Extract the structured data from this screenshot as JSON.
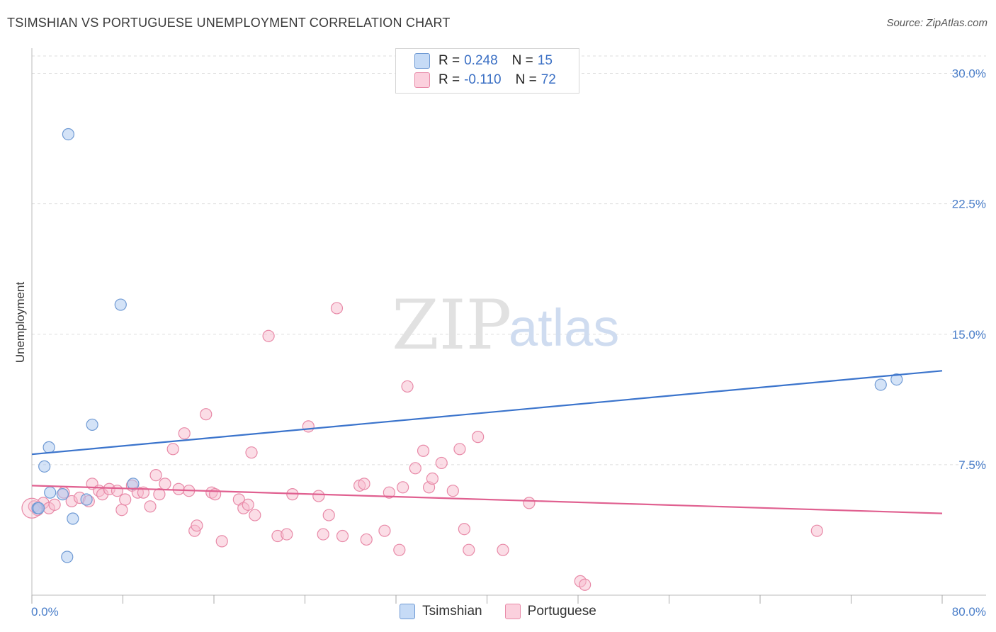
{
  "title": "TSIMSHIAN VS PORTUGUESE UNEMPLOYMENT CORRELATION CHART",
  "source": "Source: ZipAtlas.com",
  "watermark": {
    "zip": "ZIP",
    "atlas": "atlas"
  },
  "legend": {
    "rows": [
      {
        "r_label": "R =",
        "r_value": "0.248",
        "n_label": "N =",
        "n_value": "15"
      },
      {
        "r_label": "R =",
        "r_value": "-0.110",
        "n_label": "N =",
        "n_value": "72"
      }
    ]
  },
  "bottom_legend": [
    "Tsimshian",
    "Portuguese"
  ],
  "colors": {
    "tsimshian_fill": "#aac8f0",
    "tsimshian_stroke": "#6f9ad4",
    "tsimshian_line": "#3b74cc",
    "portuguese_fill": "#f7bccd",
    "portuguese_stroke": "#e88aa8",
    "portuguese_line": "#e06090",
    "grid": "#dddddd",
    "tick_text": "#4a7ec9"
  },
  "chart_data": {
    "type": "scatter",
    "title": "TSIMSHIAN VS PORTUGUESE UNEMPLOYMENT CORRELATION CHART",
    "xlabel": "",
    "ylabel": "Unemployment",
    "xlim": [
      0,
      80
    ],
    "ylim": [
      0,
      31
    ],
    "x_tick_labels": [
      "0.0%",
      "80.0%"
    ],
    "y_ticks": [
      7.5,
      15.0,
      22.5,
      30.0
    ],
    "y_tick_labels": [
      "7.5%",
      "15.0%",
      "22.5%",
      "30.0%"
    ],
    "grid": true,
    "series": [
      {
        "name": "Tsimshian",
        "r": 0.248,
        "n": 15,
        "trend": {
          "x": [
            0,
            80
          ],
          "y": [
            8.1,
            12.9
          ]
        },
        "points": [
          [
            0.5,
            5.0
          ],
          [
            0.6,
            5.0
          ],
          [
            1.5,
            8.5
          ],
          [
            1.6,
            5.9
          ],
          [
            1.1,
            7.4
          ],
          [
            2.7,
            5.8
          ],
          [
            3.2,
            26.5
          ],
          [
            3.1,
            2.2
          ],
          [
            3.6,
            4.4
          ],
          [
            4.8,
            5.5
          ],
          [
            5.3,
            9.8
          ],
          [
            7.8,
            16.7
          ],
          [
            8.9,
            6.4
          ],
          [
            74.6,
            12.1
          ],
          [
            76.0,
            12.4
          ]
        ]
      },
      {
        "name": "Portuguese",
        "r": -0.11,
        "n": 72,
        "trend": {
          "x": [
            0,
            80
          ],
          "y": [
            6.3,
            4.7
          ]
        },
        "points": [
          [
            0.2,
            5.1
          ],
          [
            0.5,
            4.9
          ],
          [
            1.0,
            5.3
          ],
          [
            1.5,
            5.0
          ],
          [
            2.0,
            5.2
          ],
          [
            2.8,
            5.9
          ],
          [
            3.5,
            5.4
          ],
          [
            4.2,
            5.6
          ],
          [
            5.0,
            5.4
          ],
          [
            5.3,
            6.4
          ],
          [
            5.9,
            6.0
          ],
          [
            6.2,
            5.8
          ],
          [
            6.8,
            6.1
          ],
          [
            7.5,
            6.0
          ],
          [
            7.9,
            4.9
          ],
          [
            8.2,
            5.5
          ],
          [
            8.8,
            6.3
          ],
          [
            9.3,
            5.9
          ],
          [
            9.8,
            5.9
          ],
          [
            10.4,
            5.1
          ],
          [
            10.9,
            6.9
          ],
          [
            11.2,
            5.8
          ],
          [
            11.7,
            6.4
          ],
          [
            12.4,
            8.4
          ],
          [
            12.9,
            6.1
          ],
          [
            13.4,
            9.3
          ],
          [
            13.8,
            6.0
          ],
          [
            14.3,
            3.7
          ],
          [
            14.5,
            4.0
          ],
          [
            15.3,
            10.4
          ],
          [
            15.8,
            5.9
          ],
          [
            16.1,
            5.8
          ],
          [
            16.7,
            3.1
          ],
          [
            18.2,
            5.5
          ],
          [
            18.6,
            5.0
          ],
          [
            19.0,
            5.2
          ],
          [
            19.3,
            8.2
          ],
          [
            19.6,
            4.6
          ],
          [
            20.8,
            14.9
          ],
          [
            21.6,
            3.4
          ],
          [
            22.4,
            3.5
          ],
          [
            22.9,
            5.8
          ],
          [
            24.3,
            9.7
          ],
          [
            25.2,
            5.7
          ],
          [
            25.6,
            3.5
          ],
          [
            26.1,
            4.6
          ],
          [
            26.8,
            16.5
          ],
          [
            27.3,
            3.4
          ],
          [
            28.8,
            6.3
          ],
          [
            29.2,
            6.4
          ],
          [
            29.4,
            3.2
          ],
          [
            31.0,
            3.7
          ],
          [
            31.4,
            5.9
          ],
          [
            32.3,
            2.6
          ],
          [
            32.6,
            6.2
          ],
          [
            33.0,
            12.0
          ],
          [
            33.7,
            7.3
          ],
          [
            34.4,
            8.3
          ],
          [
            34.9,
            6.2
          ],
          [
            35.2,
            6.7
          ],
          [
            36.0,
            7.6
          ],
          [
            37.0,
            6.0
          ],
          [
            37.6,
            8.4
          ],
          [
            38.0,
            3.8
          ],
          [
            38.4,
            2.6
          ],
          [
            39.2,
            9.1
          ],
          [
            41.4,
            2.6
          ],
          [
            43.7,
            5.3
          ],
          [
            48.2,
            0.8
          ],
          [
            48.6,
            0.6
          ],
          [
            69.0,
            3.7
          ],
          [
            0.0,
            5.0
          ]
        ]
      }
    ]
  }
}
